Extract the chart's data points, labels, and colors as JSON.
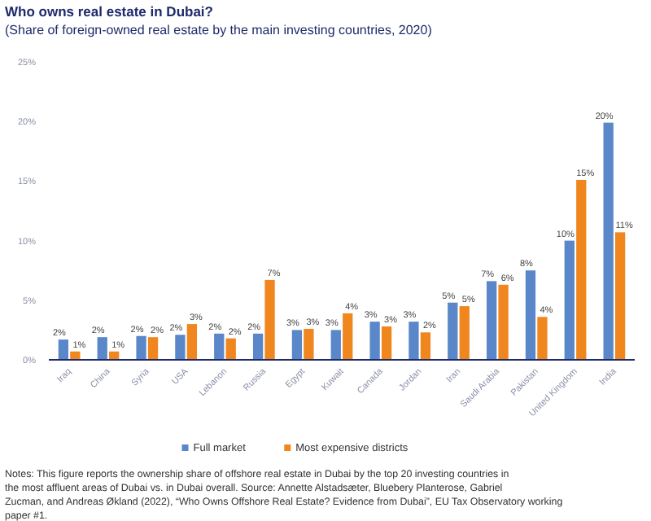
{
  "chart_data": {
    "type": "bar",
    "title": "Who owns real estate in Dubai?",
    "subtitle": "(Share of foreign-owned real estate by the main investing countries, 2020)",
    "categories": [
      "Iraq",
      "China",
      "Syria",
      "USA",
      "Lebanon",
      "Russia",
      "Egypt",
      "Kuwait",
      "Canada",
      "Jordan",
      "Iran",
      "Saudi Arabia",
      "Pakistan",
      "United Kingdom",
      "India"
    ],
    "series": [
      {
        "name": "Full market",
        "color": "#5a87c9",
        "values": [
          1.7,
          1.9,
          2.0,
          2.1,
          2.2,
          2.2,
          2.5,
          2.5,
          3.2,
          3.2,
          4.8,
          6.6,
          7.5,
          10.0,
          19.9
        ],
        "value_labels": [
          "2%",
          "2%",
          "2%",
          "2%",
          "2%",
          "2%",
          "3%",
          "3%",
          "3%",
          "3%",
          "5%",
          "7%",
          "8%",
          "10%",
          "20%"
        ]
      },
      {
        "name": "Most expensive districts",
        "color": "#f0861e",
        "values": [
          0.7,
          0.7,
          1.9,
          3.0,
          1.8,
          6.7,
          2.6,
          3.9,
          2.8,
          2.3,
          4.5,
          6.3,
          3.6,
          15.1,
          10.7
        ],
        "value_labels": [
          "1%",
          "1%",
          "2%",
          "3%",
          "2%",
          "7%",
          "3%",
          "4%",
          "3%",
          "2%",
          "5%",
          "6%",
          "4%",
          "15%",
          "11%"
        ]
      }
    ],
    "ylim": [
      0,
      25
    ],
    "yticks": [
      {
        "value": 0,
        "label": "0%"
      },
      {
        "value": 5,
        "label": "5%"
      },
      {
        "value": 10,
        "label": "10%"
      },
      {
        "value": 15,
        "label": "15%"
      },
      {
        "value": 20,
        "label": "20%"
      },
      {
        "value": 25,
        "label": "25%"
      }
    ],
    "grid": false,
    "legend": "bottom",
    "annotations": [
      "Notes: This figure reports the ownership share of offshore real estate in Dubai by the top 20 investing countries in the most affluent areas of Dubai vs. in Dubai overall. Source: Annette Alstadsæter, Bluebery Planterose, Gabriel Zucman, and Andreas Økland (2022), “Who Owns Offshore Real Estate? Evidence from Dubai”, EU Tax Observatory working paper #1."
    ]
  }
}
